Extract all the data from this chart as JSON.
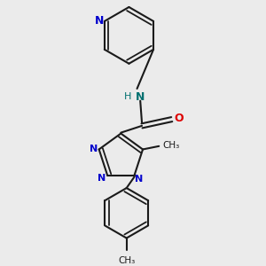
{
  "background_color": "#ebebeb",
  "bond_color": "#1a1a1a",
  "nitrogen_color": "#0000cc",
  "oxygen_color": "#dd0000",
  "nh_color": "#007070",
  "figsize": [
    3.0,
    3.0
  ],
  "dpi": 100,
  "xlim": [
    0.5,
    2.8
  ],
  "ylim": [
    0.15,
    3.35
  ]
}
